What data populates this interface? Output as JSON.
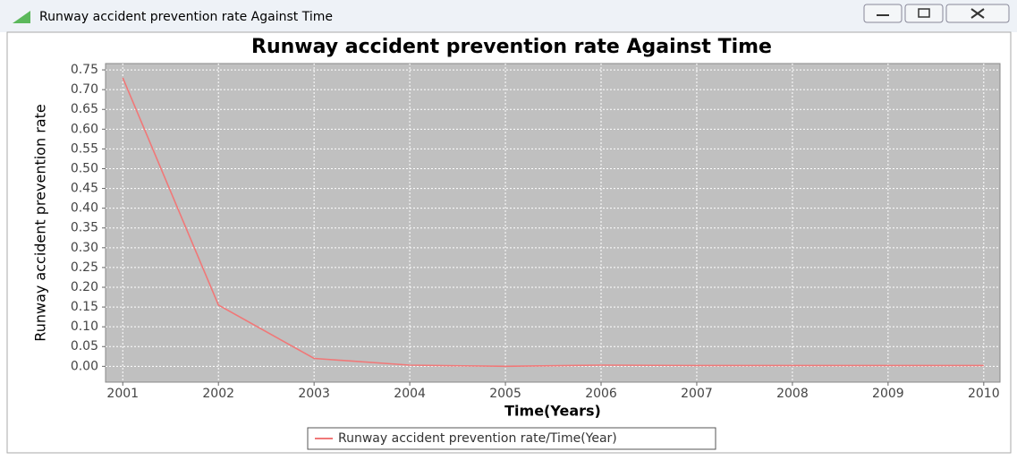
{
  "window": {
    "title": "Runway accident prevention rate Against Time"
  },
  "chart_data": {
    "type": "line",
    "title": "Runway accident prevention rate Against Time",
    "x_label": "Time(Years)",
    "y_label": "Runway accident prevention rate",
    "x": [
      2001,
      2002,
      2003,
      2004,
      2005,
      2006,
      2007,
      2008,
      2009,
      2010
    ],
    "series": [
      {
        "name": "Runway accident prevention rate/Time(Year)",
        "color": "#f07878",
        "values": [
          0.73,
          0.155,
          0.02,
          0.003,
          0.0,
          0.003,
          0.002,
          0.002,
          0.002,
          0.002
        ]
      }
    ],
    "xlim": [
      2000.82,
      2010.17
    ],
    "ylim": [
      -0.04,
      0.766
    ],
    "xticks": [
      2001,
      2002,
      2003,
      2004,
      2005,
      2006,
      2007,
      2008,
      2009,
      2010
    ],
    "yticks": [
      {
        "value": 0,
        "label": "0.00"
      },
      {
        "value": 0.05,
        "label": "0.05"
      },
      {
        "value": 0.1,
        "label": "0.10"
      },
      {
        "value": 0.15,
        "label": "0.15"
      },
      {
        "value": 0.2,
        "label": "0.20"
      },
      {
        "value": 0.25,
        "label": "0.25"
      },
      {
        "value": 0.3,
        "label": "0.30"
      },
      {
        "value": 0.35,
        "label": "0.35"
      },
      {
        "value": 0.4,
        "label": "0.40"
      },
      {
        "value": 0.45,
        "label": "0.45"
      },
      {
        "value": 0.5,
        "label": "0.50"
      },
      {
        "value": 0.55,
        "label": "0.55"
      },
      {
        "value": 0.6,
        "label": "0.60"
      },
      {
        "value": 0.65,
        "label": "0.65"
      },
      {
        "value": 0.7,
        "label": "0.70"
      },
      {
        "value": 0.75,
        "label": "0.75"
      }
    ],
    "grid": true,
    "legend": "bottom"
  }
}
